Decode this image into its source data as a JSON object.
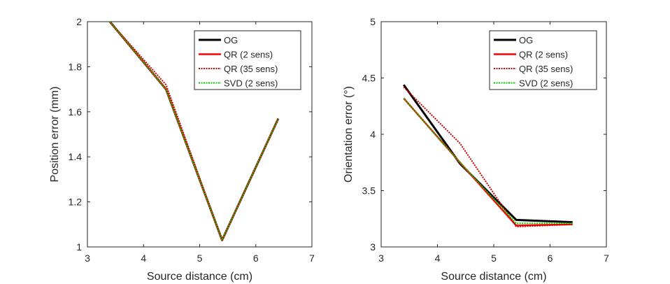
{
  "chart_data": [
    {
      "type": "line",
      "title": "",
      "xlabel": "Source distance (cm)",
      "ylabel": "Position error (mm)",
      "xlim": [
        3,
        7
      ],
      "ylim": [
        1,
        2
      ],
      "xticks": [
        3,
        4,
        5,
        6,
        7
      ],
      "yticks": [
        1,
        1.2,
        1.4,
        1.6,
        1.8,
        2
      ],
      "ytick_labels": [
        "1",
        "1.2",
        "1.4",
        "1.6",
        "1.8",
        "2"
      ],
      "grid": false,
      "legend_position": "top-right",
      "x": [
        3.4,
        4.4,
        5.4,
        6.4
      ],
      "series": [
        {
          "name": "OG",
          "values": [
            2.0,
            1.7,
            1.03,
            1.57
          ],
          "color": "#000000",
          "style": "solid"
        },
        {
          "name": "QR (2 sens)",
          "values": [
            2.0,
            1.7,
            1.03,
            1.57
          ],
          "color": "#ff0000",
          "style": "solid"
        },
        {
          "name": "QR (35 sens)",
          "values": [
            2.0,
            1.72,
            1.03,
            1.57
          ],
          "color": "#cc0000",
          "style": "dotted"
        },
        {
          "name": "SVD (2 sens)",
          "values": [
            2.0,
            1.7,
            1.03,
            1.57
          ],
          "color": "#00cc00",
          "style": "dotted"
        }
      ]
    },
    {
      "type": "line",
      "title": "",
      "xlabel": "Source distance (cm)",
      "ylabel": "Orientation error (°)",
      "xlim": [
        3,
        7
      ],
      "ylim": [
        3,
        5
      ],
      "xticks": [
        3,
        4,
        5,
        6,
        7
      ],
      "yticks": [
        3,
        3.5,
        4,
        4.5,
        5
      ],
      "ytick_labels": [
        "3",
        "3.5",
        "4",
        "4.5",
        "5"
      ],
      "grid": false,
      "legend_position": "top-right",
      "x": [
        3.4,
        4.4,
        5.4,
        6.4
      ],
      "series": [
        {
          "name": "OG",
          "values": [
            4.44,
            3.74,
            3.24,
            3.22
          ],
          "color": "#000000",
          "style": "solid"
        },
        {
          "name": "QR (2 sens)",
          "values": [
            4.32,
            3.75,
            3.19,
            3.2
          ],
          "color": "#ff0000",
          "style": "solid"
        },
        {
          "name": "QR (35 sens)",
          "values": [
            4.42,
            3.92,
            3.18,
            3.2
          ],
          "color": "#cc0000",
          "style": "dotted"
        },
        {
          "name": "SVD (2 sens)",
          "values": [
            4.32,
            3.75,
            3.21,
            3.21
          ],
          "color": "#00cc00",
          "style": "dotted"
        }
      ]
    }
  ]
}
